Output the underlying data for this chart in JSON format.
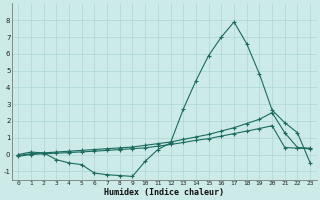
{
  "xlabel": "Humidex (Indice chaleur)",
  "ylabel": "",
  "bg_color": "#cceae7",
  "line_color": "#1a6b5e",
  "grid_color": "#afd8d3",
  "xlim": [
    -0.5,
    23.5
  ],
  "ylim": [
    -1.5,
    9.0
  ],
  "yticks": [
    -1,
    0,
    1,
    2,
    3,
    4,
    5,
    6,
    7,
    8
  ],
  "xticks": [
    0,
    1,
    2,
    3,
    4,
    5,
    6,
    7,
    8,
    9,
    10,
    11,
    12,
    13,
    14,
    15,
    16,
    17,
    18,
    19,
    20,
    21,
    22,
    23
  ],
  "series1_x": [
    0,
    1,
    2,
    3,
    4,
    5,
    6,
    7,
    8,
    9,
    10,
    11,
    12,
    13,
    14,
    15,
    16,
    17,
    18,
    19,
    20,
    21,
    22,
    23
  ],
  "series1_y": [
    0.0,
    0.15,
    0.1,
    -0.3,
    -0.5,
    -0.6,
    -1.1,
    -1.2,
    -1.25,
    -1.3,
    -0.4,
    0.3,
    0.7,
    2.7,
    4.4,
    5.9,
    7.0,
    7.9,
    6.6,
    4.8,
    2.65,
    1.9,
    1.3,
    -0.5
  ],
  "series2_x": [
    0,
    1,
    2,
    3,
    4,
    5,
    6,
    7,
    8,
    9,
    10,
    11,
    12,
    13,
    14,
    15,
    16,
    17,
    18,
    19,
    20,
    21,
    22,
    23
  ],
  "series2_y": [
    -0.05,
    0.05,
    0.1,
    0.15,
    0.2,
    0.25,
    0.3,
    0.35,
    0.4,
    0.45,
    0.55,
    0.65,
    0.75,
    0.9,
    1.05,
    1.2,
    1.4,
    1.6,
    1.85,
    2.1,
    2.5,
    1.3,
    0.42,
    0.38
  ],
  "series3_x": [
    0,
    1,
    2,
    3,
    4,
    5,
    6,
    7,
    8,
    9,
    10,
    11,
    12,
    13,
    14,
    15,
    16,
    17,
    18,
    19,
    20,
    21,
    22,
    23
  ],
  "series3_y": [
    -0.1,
    0.0,
    0.05,
    0.08,
    0.12,
    0.16,
    0.2,
    0.25,
    0.3,
    0.35,
    0.4,
    0.5,
    0.6,
    0.72,
    0.85,
    0.95,
    1.1,
    1.25,
    1.4,
    1.55,
    1.72,
    0.42,
    0.38,
    0.35
  ]
}
